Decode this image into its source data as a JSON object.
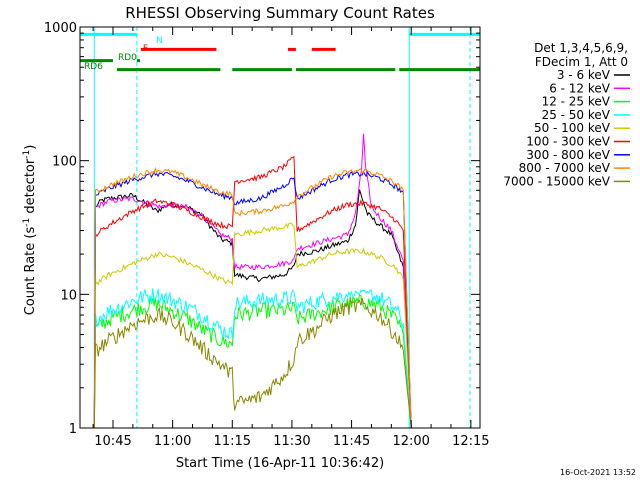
{
  "chart_data": {
    "type": "line",
    "title": "RHESSI Observing Summary Count Rates",
    "xlabel": "Start Time (16-Apr-11 10:36:42)",
    "ylabel_main": "Count Rate (s",
    "ylabel_sup1": "-1",
    "ylabel_mid": " detector",
    "ylabel_sup2": "-1",
    "ylabel_end": ")",
    "y_scale": "log",
    "ylim": [
      1,
      1000
    ],
    "xlim_minutes": [
      36.7,
      137.3
    ],
    "x_ticks": [
      {
        "label": "10:45",
        "minute": 45
      },
      {
        "label": "11:00",
        "minute": 60
      },
      {
        "label": "11:15",
        "minute": 75
      },
      {
        "label": "11:30",
        "minute": 90
      },
      {
        "label": "11:45",
        "minute": 105
      },
      {
        "label": "12:00",
        "minute": 120
      },
      {
        "label": "12:15",
        "minute": 135
      }
    ],
    "y_ticks": [
      {
        "label": "1",
        "value": 1
      },
      {
        "label": "10",
        "value": 10
      },
      {
        "label": "100",
        "value": 100
      },
      {
        "label": "1000",
        "value": 1000
      }
    ],
    "legend": {
      "header": [
        "Det 1,3,4,5,6,9,",
        "FDecim 1, Att 0"
      ],
      "placement": "right"
    },
    "series": [
      {
        "name": "3 - 6 keV",
        "color": "#000000",
        "points": [
          [
            40.3,
            1
          ],
          [
            40.6,
            45
          ],
          [
            42,
            50
          ],
          [
            44,
            52
          ],
          [
            50,
            55
          ],
          [
            56,
            42
          ],
          [
            59,
            47
          ],
          [
            63,
            46
          ],
          [
            67,
            40
          ],
          [
            72,
            26
          ],
          [
            75,
            24
          ],
          [
            75.6,
            14
          ],
          [
            82,
            13
          ],
          [
            88,
            14
          ],
          [
            90.5,
            16
          ],
          [
            91.3,
            20
          ],
          [
            96,
            21
          ],
          [
            100,
            23
          ],
          [
            104,
            25
          ],
          [
            106,
            33
          ],
          [
            107,
            60
          ],
          [
            109,
            40
          ],
          [
            112,
            33
          ],
          [
            115,
            28
          ],
          [
            116,
            23
          ],
          [
            118,
            16
          ],
          [
            120,
            1
          ]
        ]
      },
      {
        "name": "6 - 12 keV",
        "color": "#ff00ff",
        "points": [
          [
            40.3,
            1
          ],
          [
            40.6,
            45
          ],
          [
            44,
            50
          ],
          [
            50,
            52
          ],
          [
            57,
            45
          ],
          [
            59,
            47
          ],
          [
            63,
            45
          ],
          [
            67,
            40
          ],
          [
            72,
            28
          ],
          [
            75,
            26
          ],
          [
            75.6,
            16
          ],
          [
            82,
            16
          ],
          [
            88,
            17
          ],
          [
            90.5,
            18
          ],
          [
            91.3,
            22
          ],
          [
            96,
            24
          ],
          [
            100,
            26
          ],
          [
            104,
            28
          ],
          [
            106,
            40
          ],
          [
            107.5,
            85
          ],
          [
            108,
            160
          ],
          [
            108.5,
            90
          ],
          [
            110,
            45
          ],
          [
            112,
            38
          ],
          [
            115,
            30
          ],
          [
            116,
            25
          ],
          [
            118,
            18
          ],
          [
            120,
            1
          ]
        ]
      },
      {
        "name": "12 - 25 keV",
        "color": "#00ff00",
        "points": [
          [
            40.3,
            1
          ],
          [
            40.6,
            5.5
          ],
          [
            44,
            6.5
          ],
          [
            52,
            8
          ],
          [
            56,
            8.5
          ],
          [
            60,
            7.5
          ],
          [
            64,
            6.5
          ],
          [
            68,
            5.3
          ],
          [
            72,
            4.5
          ],
          [
            75,
            4.2
          ],
          [
            75.6,
            7
          ],
          [
            82,
            7.5
          ],
          [
            88,
            7.6
          ],
          [
            90.5,
            7.8
          ],
          [
            91.3,
            6.5
          ],
          [
            96,
            7.2
          ],
          [
            100,
            8
          ],
          [
            104,
            8.5
          ],
          [
            108,
            8.8
          ],
          [
            112,
            8.2
          ],
          [
            116,
            6.5
          ],
          [
            118,
            5
          ],
          [
            120,
            1
          ]
        ]
      },
      {
        "name": "25 - 50 keV",
        "color": "#00ffff",
        "points": [
          [
            40.3,
            1
          ],
          [
            40.6,
            6.5
          ],
          [
            44,
            7.5
          ],
          [
            52,
            9.5
          ],
          [
            56,
            10
          ],
          [
            60,
            9
          ],
          [
            64,
            8
          ],
          [
            68,
            6.8
          ],
          [
            72,
            5.5
          ],
          [
            75,
            5
          ],
          [
            75.6,
            8.5
          ],
          [
            82,
            9
          ],
          [
            88,
            9.2
          ],
          [
            90.5,
            9.5
          ],
          [
            91.3,
            8
          ],
          [
            96,
            8.8
          ],
          [
            100,
            9.5
          ],
          [
            104,
            10
          ],
          [
            108,
            10.3
          ],
          [
            112,
            9.5
          ],
          [
            116,
            7.8
          ],
          [
            118,
            6
          ],
          [
            120,
            1
          ]
        ]
      },
      {
        "name": "50 - 100 keV",
        "color": "#cccc00",
        "points": [
          [
            40.3,
            1
          ],
          [
            40.6,
            12
          ],
          [
            44,
            14
          ],
          [
            50,
            17
          ],
          [
            56,
            20
          ],
          [
            60,
            19
          ],
          [
            64,
            17
          ],
          [
            68,
            15
          ],
          [
            72,
            13
          ],
          [
            75,
            12
          ],
          [
            75.6,
            28
          ],
          [
            82,
            30
          ],
          [
            88,
            32
          ],
          [
            90.5,
            33
          ],
          [
            91.3,
            16
          ],
          [
            96,
            18
          ],
          [
            100,
            20
          ],
          [
            104,
            21
          ],
          [
            108,
            21
          ],
          [
            112,
            19
          ],
          [
            116,
            16
          ],
          [
            118,
            13
          ],
          [
            120,
            1
          ]
        ]
      },
      {
        "name": "100 - 300 keV",
        "color": "#ff0000",
        "points": [
          [
            40.3,
            1
          ],
          [
            40.6,
            28
          ],
          [
            44,
            33
          ],
          [
            50,
            42
          ],
          [
            56,
            50
          ],
          [
            60,
            47
          ],
          [
            64,
            42
          ],
          [
            68,
            37
          ],
          [
            72,
            33
          ],
          [
            75,
            32
          ],
          [
            75.6,
            70
          ],
          [
            82,
            75
          ],
          [
            88,
            90
          ],
          [
            90.5,
            105
          ],
          [
            91.3,
            30
          ],
          [
            96,
            36
          ],
          [
            100,
            42
          ],
          [
            104,
            47
          ],
          [
            108,
            48
          ],
          [
            112,
            44
          ],
          [
            116,
            36
          ],
          [
            118,
            30
          ],
          [
            120,
            1
          ]
        ]
      },
      {
        "name": "300 - 800 keV",
        "color": "#0000ff",
        "points": [
          [
            40.3,
            1
          ],
          [
            40.6,
            55
          ],
          [
            44,
            62
          ],
          [
            50,
            72
          ],
          [
            56,
            80
          ],
          [
            60,
            77
          ],
          [
            64,
            70
          ],
          [
            68,
            62
          ],
          [
            72,
            55
          ],
          [
            75,
            53
          ],
          [
            75.6,
            48
          ],
          [
            82,
            52
          ],
          [
            88,
            65
          ],
          [
            90.5,
            75
          ],
          [
            91.3,
            52
          ],
          [
            96,
            62
          ],
          [
            100,
            72
          ],
          [
            104,
            78
          ],
          [
            108,
            80
          ],
          [
            112,
            74
          ],
          [
            116,
            64
          ],
          [
            118,
            58
          ],
          [
            120,
            1
          ]
        ]
      },
      {
        "name": "800 - 7000 keV",
        "color": "#ff8800",
        "points": [
          [
            40.3,
            1
          ],
          [
            40.6,
            58
          ],
          [
            44,
            65
          ],
          [
            50,
            76
          ],
          [
            56,
            85
          ],
          [
            60,
            82
          ],
          [
            64,
            74
          ],
          [
            68,
            65
          ],
          [
            72,
            58
          ],
          [
            75,
            56
          ],
          [
            75.6,
            40
          ],
          [
            82,
            42
          ],
          [
            88,
            46
          ],
          [
            90.5,
            50
          ],
          [
            91.3,
            54
          ],
          [
            96,
            65
          ],
          [
            100,
            76
          ],
          [
            104,
            82
          ],
          [
            108,
            85
          ],
          [
            112,
            78
          ],
          [
            116,
            68
          ],
          [
            118,
            60
          ],
          [
            120,
            1
          ]
        ]
      },
      {
        "name": "7000 - 15000 keV",
        "color": "#888800",
        "points": [
          [
            40.3,
            1
          ],
          [
            40.6,
            3.8
          ],
          [
            44,
            4.5
          ],
          [
            50,
            6
          ],
          [
            56,
            7
          ],
          [
            60,
            6.2
          ],
          [
            64,
            5
          ],
          [
            68,
            3.8
          ],
          [
            72,
            3
          ],
          [
            75,
            2.5
          ],
          [
            75.6,
            1.5
          ],
          [
            82,
            1.7
          ],
          [
            88,
            2.5
          ],
          [
            90.5,
            3.3
          ],
          [
            91.3,
            4.5
          ],
          [
            96,
            5.5
          ],
          [
            100,
            7
          ],
          [
            104,
            8
          ],
          [
            108,
            8.2
          ],
          [
            112,
            7
          ],
          [
            116,
            5
          ],
          [
            118,
            3.8
          ],
          [
            120,
            1
          ]
        ]
      }
    ],
    "state_bars": [
      {
        "name": "N",
        "color": "#00ffff",
        "level": 880,
        "segments": [
          [
            36.7,
            51
          ],
          [
            119.5,
            137.3
          ]
        ]
      },
      {
        "name": "F",
        "color": "#ff0000",
        "level": 680,
        "segments": [
          [
            52,
            71
          ],
          [
            89,
            91
          ],
          [
            95,
            101
          ]
        ]
      },
      {
        "name": "RD0",
        "color": "#008800",
        "level": 560,
        "segments": [
          [
            36.7,
            45
          ],
          [
            51,
            51.8
          ]
        ]
      },
      {
        "name": "RD6",
        "color": "#008800",
        "level": 480,
        "segments": [
          [
            46,
            72
          ],
          [
            75,
            90
          ],
          [
            91,
            116
          ],
          [
            117,
            137.3
          ]
        ]
      }
    ],
    "vlines": [
      {
        "minute": 40.3,
        "color": "#00ffff",
        "style": "solid"
      },
      {
        "minute": 51,
        "color": "#00ffff",
        "style": "dashed"
      },
      {
        "minute": 119.5,
        "color": "#00ffff",
        "style": "solid"
      },
      {
        "minute": 134.8,
        "color": "#00ffff",
        "style": "dashed"
      }
    ],
    "grid": false,
    "timestamp": "16-Oct-2021 13:52"
  }
}
